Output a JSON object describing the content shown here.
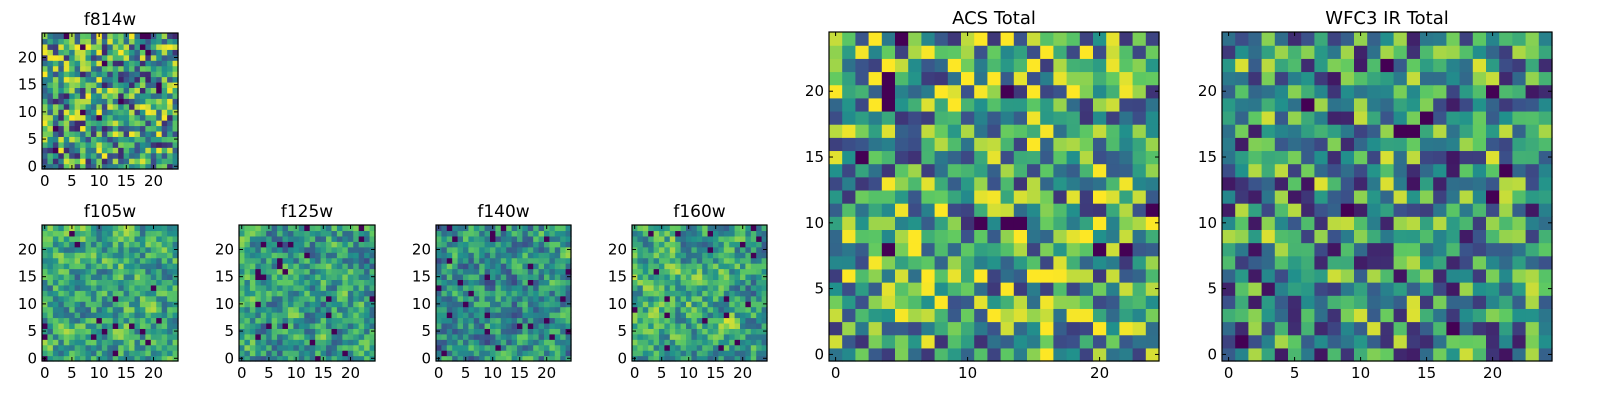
{
  "figure": {
    "description_colormap": "viridis",
    "colors": [
      "#440154",
      "#3b528b",
      "#21918c",
      "#5ec962",
      "#fde725"
    ]
  },
  "chart_data": [
    {
      "id": "f814w",
      "type": "heatmap",
      "title": "f814w",
      "grid_size": 25,
      "xlim": [
        0,
        24
      ],
      "ylim": [
        0,
        24
      ],
      "xticks": [
        0,
        5,
        10,
        15,
        20
      ],
      "yticks": [
        0,
        5,
        10,
        15,
        20
      ],
      "seed": 11,
      "smooth": 0,
      "dark_fraction": 0.03,
      "bias": 0.55
    },
    {
      "id": "f105w",
      "type": "heatmap",
      "title": "f105w",
      "grid_size": 25,
      "xlim": [
        0,
        24
      ],
      "ylim": [
        0,
        24
      ],
      "xticks": [
        0,
        5,
        10,
        15,
        20
      ],
      "yticks": [
        0,
        5,
        10,
        15,
        20
      ],
      "seed": 23,
      "smooth": 1,
      "dark_fraction": 0.02,
      "bias": 0.6
    },
    {
      "id": "f125w",
      "type": "heatmap",
      "title": "f125w",
      "grid_size": 25,
      "xlim": [
        0,
        24
      ],
      "ylim": [
        0,
        24
      ],
      "xticks": [
        0,
        5,
        10,
        15,
        20
      ],
      "yticks": [
        0,
        5,
        10,
        15,
        20
      ],
      "seed": 37,
      "smooth": 1,
      "dark_fraction": 0.04,
      "bias": 0.55
    },
    {
      "id": "f140w",
      "type": "heatmap",
      "title": "f140w",
      "grid_size": 25,
      "xlim": [
        0,
        24
      ],
      "ylim": [
        0,
        24
      ],
      "xticks": [
        0,
        5,
        10,
        15,
        20
      ],
      "yticks": [
        0,
        5,
        10,
        15,
        20
      ],
      "seed": 41,
      "smooth": 1,
      "dark_fraction": 0.05,
      "bias": 0.5
    },
    {
      "id": "f160w",
      "type": "heatmap",
      "title": "f160w",
      "grid_size": 25,
      "xlim": [
        0,
        24
      ],
      "ylim": [
        0,
        24
      ],
      "xticks": [
        0,
        5,
        10,
        15,
        20
      ],
      "yticks": [
        0,
        5,
        10,
        15,
        20
      ],
      "seed": 53,
      "smooth": 1,
      "dark_fraction": 0.04,
      "bias": 0.6
    },
    {
      "id": "acs-total",
      "type": "heatmap",
      "title": "ACS Total",
      "grid_size": 25,
      "xlim": [
        0,
        24
      ],
      "ylim": [
        0,
        24
      ],
      "xticks": [
        0,
        10,
        20
      ],
      "yticks": [
        0,
        5,
        10,
        15,
        20
      ],
      "seed": 67,
      "smooth": 0,
      "dark_fraction": 0.02,
      "bias": 0.6
    },
    {
      "id": "wfc3-ir-total",
      "type": "heatmap",
      "title": "WFC3 IR Total",
      "grid_size": 25,
      "xlim": [
        0,
        24
      ],
      "ylim": [
        0,
        24
      ],
      "xticks": [
        0,
        5,
        10,
        15,
        20
      ],
      "yticks": [
        0,
        5,
        10,
        15,
        20
      ],
      "seed": 79,
      "smooth": 0,
      "dark_fraction": 0.025,
      "bias": 0.5
    }
  ]
}
